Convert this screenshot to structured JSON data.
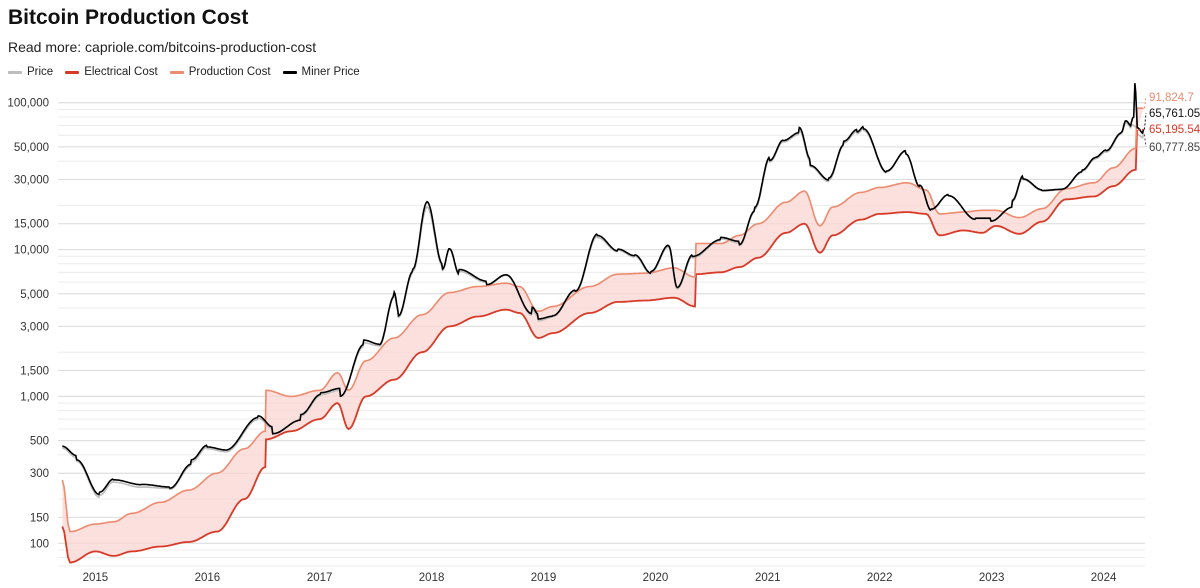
{
  "title": "Bitcoin Production Cost",
  "subtitle": "Read more: capriole.com/bitcoins-production-cost",
  "colors": {
    "price": "#bdbdbd",
    "electrical_cost": "#d73a27",
    "production_cost": "#ee8a6e",
    "miner_price": "#000000",
    "band_fill": "#f9d6d1"
  },
  "chart_data": {
    "type": "line",
    "title": "Bitcoin Production Cost",
    "y_scale": "log",
    "ylim": [
      70,
      130000
    ],
    "xlim": [
      "2014-09-01",
      "2024-05-15"
    ],
    "grid": true,
    "legend_placement": "top-left",
    "y_ticks": [
      100,
      150,
      300,
      500,
      1000,
      1500,
      3000,
      5000,
      10000,
      15000,
      30000,
      50000,
      100000
    ],
    "y_tick_labels": [
      "100",
      "150",
      "300",
      "500",
      "1,000",
      "1,500",
      "3,000",
      "5,000",
      "10,000",
      "15,000",
      "30,000",
      "50,000",
      "100,000"
    ],
    "x_ticks": [
      "2015-01-01",
      "2016-01-01",
      "2017-01-01",
      "2018-01-01",
      "2019-01-01",
      "2020-01-01",
      "2021-01-01",
      "2022-01-01",
      "2023-01-01",
      "2024-01-01"
    ],
    "x_tick_labels": [
      "2015",
      "2016",
      "2017",
      "2018",
      "2019",
      "2020",
      "2021",
      "2022",
      "2023",
      "2024"
    ],
    "last_value_labels": [
      {
        "series": "Production Cost",
        "text": "91,824.7"
      },
      {
        "series": "Miner Price",
        "text": "65,761.05"
      },
      {
        "series": "Electrical Cost",
        "text": "65,195.54"
      },
      {
        "series": "Price",
        "text": "60,777.85"
      }
    ],
    "series": [
      {
        "name": "Price",
        "x": [
          "2014-09-15",
          "2014-11-01",
          "2015-01-15",
          "2015-03-01",
          "2015-06-01",
          "2015-09-01",
          "2015-11-10",
          "2016-01-01",
          "2016-03-01",
          "2016-06-15",
          "2016-08-01",
          "2016-11-01",
          "2017-01-05",
          "2017-03-10",
          "2017-05-25",
          "2017-07-15",
          "2017-09-01",
          "2017-09-15",
          "2017-11-01",
          "2017-12-17",
          "2018-02-06",
          "2018-03-01",
          "2018-04-01",
          "2018-06-30",
          "2018-09-01",
          "2018-11-25",
          "2018-12-15",
          "2019-02-01",
          "2019-04-15",
          "2019-06-26",
          "2019-09-01",
          "2019-10-26",
          "2019-12-18",
          "2020-02-13",
          "2020-03-12",
          "2020-05-01",
          "2020-08-01",
          "2020-10-01",
          "2020-11-20",
          "2021-01-08",
          "2021-02-21",
          "2021-04-14",
          "2021-05-20",
          "2021-07-20",
          "2021-09-06",
          "2021-10-20",
          "2021-11-10",
          "2022-01-24",
          "2022-03-28",
          "2022-05-12",
          "2022-06-18",
          "2022-08-14",
          "2022-11-10",
          "2022-12-30",
          "2023-03-10",
          "2023-04-14",
          "2023-06-15",
          "2023-08-20",
          "2023-10-24",
          "2023-12-05",
          "2024-01-10",
          "2024-02-28",
          "2024-03-14",
          "2024-04-01",
          "2024-04-20",
          "2024-05-10"
        ],
        "y": [
          430,
          370,
          210,
          260,
          240,
          235,
          340,
          430,
          410,
          680,
          580,
          720,
          980,
          1050,
          2300,
          2200,
          4700,
          3500,
          7000,
          19000,
          7500,
          10500,
          7000,
          5900,
          6900,
          3700,
          3300,
          3500,
          5200,
          12500,
          10000,
          9000,
          6800,
          10200,
          5300,
          8800,
          11500,
          10800,
          18300,
          40000,
          55000,
          62000,
          38000,
          30000,
          51000,
          61000,
          66000,
          34000,
          47000,
          28000,
          18900,
          24000,
          16500,
          16500,
          20500,
          30200,
          25500,
          26000,
          34000,
          41000,
          46000,
          61000,
          73000,
          67000,
          64000,
          60777.85
        ]
      },
      {
        "name": "Electrical Cost",
        "x": [
          "2014-09-15",
          "2014-10-10",
          "2015-01-01",
          "2015-03-01",
          "2015-05-01",
          "2015-08-01",
          "2015-11-01",
          "2016-02-01",
          "2016-05-01",
          "2016-07-08",
          "2016-07-10",
          "2016-10-01",
          "2017-01-01",
          "2017-03-01",
          "2017-04-05",
          "2017-06-01",
          "2017-09-01",
          "2017-12-01",
          "2018-03-01",
          "2018-06-01",
          "2018-09-01",
          "2018-10-15",
          "2018-12-15",
          "2019-02-01",
          "2019-06-01",
          "2019-09-01",
          "2019-12-01",
          "2020-03-01",
          "2020-05-09",
          "2020-05-12",
          "2020-08-01",
          "2020-10-01",
          "2020-12-01",
          "2021-03-01",
          "2021-05-01",
          "2021-06-20",
          "2021-08-01",
          "2021-11-01",
          "2022-01-01",
          "2022-04-01",
          "2022-06-01",
          "2022-07-15",
          "2022-10-01",
          "2022-12-01",
          "2023-01-15",
          "2023-04-01",
          "2023-06-15",
          "2023-09-01",
          "2023-12-01",
          "2024-02-01",
          "2024-04-15",
          "2024-04-19"
        ],
        "y": [
          130,
          74,
          88,
          82,
          88,
          95,
          102,
          120,
          200,
          330,
          510,
          580,
          700,
          900,
          600,
          1000,
          1300,
          2000,
          3000,
          3500,
          3900,
          3700,
          2500,
          2700,
          3700,
          4400,
          4500,
          4700,
          4100,
          6800,
          7000,
          7600,
          8800,
          13000,
          15000,
          9500,
          12500,
          16000,
          17500,
          18000,
          17500,
          12500,
          13500,
          13000,
          14500,
          12800,
          15500,
          22000,
          23000,
          27000,
          35000,
          65195.54
        ]
      },
      {
        "name": "Production Cost",
        "x": [
          "2014-09-15",
          "2014-10-10",
          "2015-01-01",
          "2015-03-01",
          "2015-05-01",
          "2015-08-01",
          "2015-11-01",
          "2016-02-01",
          "2016-05-01",
          "2016-07-08",
          "2016-07-10",
          "2016-10-01",
          "2017-01-01",
          "2017-03-01",
          "2017-04-05",
          "2017-06-01",
          "2017-09-01",
          "2017-12-01",
          "2018-03-01",
          "2018-06-01",
          "2018-09-01",
          "2018-10-15",
          "2018-12-15",
          "2019-02-01",
          "2019-06-01",
          "2019-09-01",
          "2019-12-01",
          "2020-03-01",
          "2020-05-09",
          "2020-05-12",
          "2020-08-01",
          "2020-10-01",
          "2020-12-01",
          "2021-03-01",
          "2021-05-01",
          "2021-06-20",
          "2021-08-01",
          "2021-11-01",
          "2022-01-01",
          "2022-04-01",
          "2022-06-01",
          "2022-07-15",
          "2022-10-01",
          "2022-12-01",
          "2023-01-15",
          "2023-04-01",
          "2023-06-15",
          "2023-09-01",
          "2023-12-01",
          "2024-02-01",
          "2024-04-15",
          "2024-04-19",
          "2024-05-10"
        ],
        "y": [
          270,
          120,
          135,
          140,
          160,
          190,
          230,
          300,
          440,
          580,
          1100,
          1000,
          1100,
          1450,
          1100,
          1750,
          2500,
          3600,
          5100,
          5600,
          5900,
          5600,
          3800,
          4100,
          5600,
          6800,
          6900,
          7500,
          6500,
          11000,
          11000,
          12500,
          15000,
          21000,
          25000,
          14500,
          19500,
          24500,
          26500,
          28500,
          25500,
          17500,
          18000,
          18500,
          18500,
          16500,
          19000,
          26000,
          28500,
          36000,
          49000,
          91824.7,
          91824.7
        ]
      },
      {
        "name": "Miner Price",
        "x": [
          "2014-09-15",
          "2014-11-01",
          "2015-01-15",
          "2015-03-01",
          "2015-06-01",
          "2015-09-01",
          "2015-11-10",
          "2016-01-01",
          "2016-03-01",
          "2016-06-15",
          "2016-08-01",
          "2016-11-01",
          "2017-01-05",
          "2017-03-10",
          "2017-05-25",
          "2017-07-15",
          "2017-09-01",
          "2017-09-15",
          "2017-11-01",
          "2017-12-17",
          "2018-02-06",
          "2018-03-01",
          "2018-04-01",
          "2018-06-30",
          "2018-09-01",
          "2018-11-25",
          "2018-12-15",
          "2019-02-01",
          "2019-04-15",
          "2019-06-26",
          "2019-09-01",
          "2019-10-26",
          "2019-12-18",
          "2020-02-13",
          "2020-03-12",
          "2020-05-01",
          "2020-08-01",
          "2020-10-01",
          "2020-11-20",
          "2021-01-08",
          "2021-02-21",
          "2021-04-14",
          "2021-05-20",
          "2021-07-20",
          "2021-09-06",
          "2021-10-20",
          "2021-11-10",
          "2022-01-24",
          "2022-03-28",
          "2022-05-12",
          "2022-06-18",
          "2022-08-14",
          "2022-11-10",
          "2022-12-30",
          "2023-03-10",
          "2023-04-14",
          "2023-06-15",
          "2023-08-20",
          "2023-10-24",
          "2023-12-05",
          "2024-01-10",
          "2024-02-28",
          "2024-03-14",
          "2024-04-01",
          "2024-04-08",
          "2024-04-12",
          "2024-04-20",
          "2024-05-10"
        ],
        "y": [
          440,
          380,
          220,
          270,
          250,
          240,
          350,
          440,
          420,
          700,
          590,
          730,
          1000,
          1070,
          2400,
          2250,
          4800,
          3600,
          7200,
          20500,
          7700,
          10700,
          7200,
          6000,
          7000,
          3800,
          3400,
          3550,
          5300,
          13000,
          10200,
          9200,
          6900,
          10400,
          5400,
          9000,
          11700,
          11000,
          18700,
          41000,
          56500,
          64000,
          39000,
          31000,
          52000,
          62500,
          68000,
          34500,
          47500,
          28500,
          19200,
          24200,
          16700,
          16700,
          20800,
          30600,
          25800,
          26300,
          34500,
          41800,
          47000,
          62000,
          75000,
          69000,
          78000,
          128000,
          72000,
          65761.05
        ]
      }
    ]
  }
}
